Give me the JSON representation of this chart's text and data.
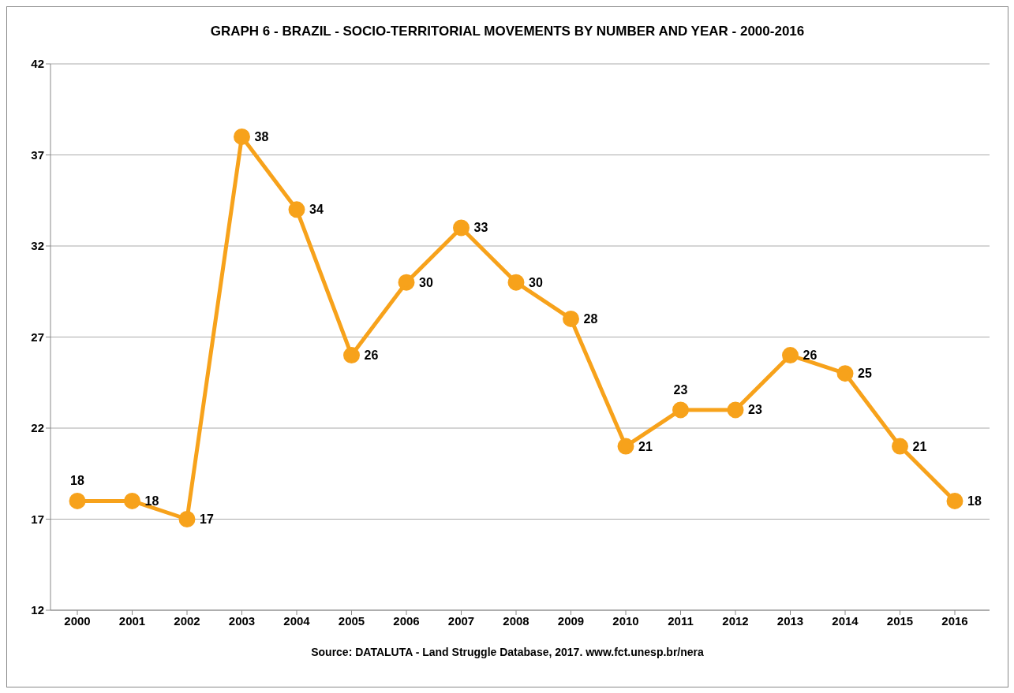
{
  "chart_data": {
    "type": "line",
    "title": "GRAPH 6 - BRAZIL  - SOCIO-TERRITORIAL MOVEMENTS BY NUMBER AND YEAR - 2000-2016",
    "categories": [
      "2000",
      "2001",
      "2002",
      "2003",
      "2004",
      "2005",
      "2006",
      "2007",
      "2008",
      "2009",
      "2010",
      "2011",
      "2012",
      "2013",
      "2014",
      "2015",
      "2016"
    ],
    "series": [
      {
        "color": "#f7a21b",
        "values": [
          18,
          18,
          17,
          38,
          34,
          26,
          30,
          33,
          30,
          28,
          21,
          23,
          23,
          26,
          25,
          21,
          18
        ]
      }
    ],
    "ylim": [
      12,
      42
    ],
    "yticks": [
      12,
      17,
      22,
      27,
      32,
      37,
      42
    ],
    "grid": "y",
    "legend": false,
    "marker": "circle",
    "line_style": "solid",
    "data_labels": true,
    "annotations": [
      "Source: DATALUTA  - Land Struggle Database, 2017. www.fct.unesp.br/nera"
    ]
  }
}
